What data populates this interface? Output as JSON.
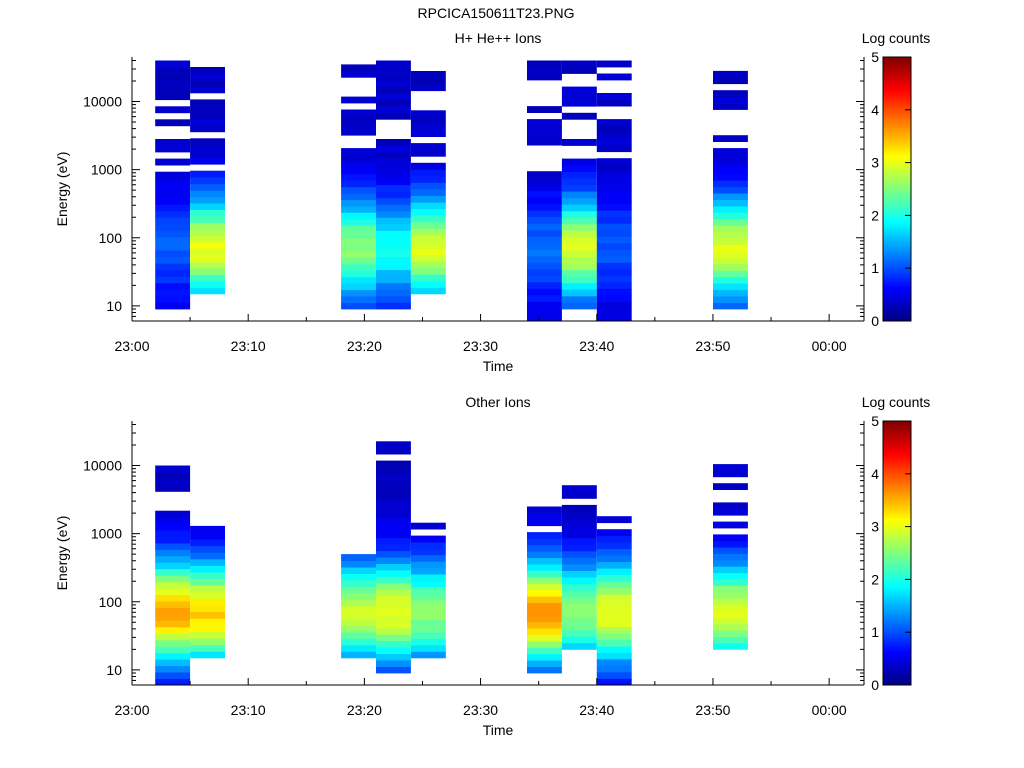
{
  "file_title": "RPCICA150611T23.PNG",
  "chart_data": [
    {
      "type": "heatmap",
      "title": "H+ He++ Ions",
      "xlabel": "Time",
      "ylabel": "Energy (eV)",
      "y_scale": "log",
      "ylim": [
        6,
        45000
      ],
      "xlim": [
        "23:00",
        "00:03"
      ],
      "x_ticks": [
        "23:00",
        "23:10",
        "23:20",
        "23:30",
        "23:40",
        "23:50",
        "00:00"
      ],
      "y_ticks": [
        "10",
        "100",
        "1000",
        "10000"
      ],
      "colorbar": {
        "label": "Log counts",
        "range": [
          0,
          5
        ],
        "ticks": [
          "0",
          "1",
          "2",
          "3",
          "4",
          "5"
        ]
      },
      "columns": [
        {
          "t0": "23:02",
          "t1": "23:05",
          "e_min": 9,
          "e_max": 40000,
          "peak_log_counts": 0.7
        },
        {
          "t0": "23:05",
          "t1": "23:08",
          "e_min": 15,
          "e_max": 40000,
          "peak_log_counts": 2.7
        },
        {
          "t0": "23:18",
          "t1": "23:21",
          "e_min": 9,
          "e_max": 35000,
          "peak_log_counts": 2.2
        },
        {
          "t0": "23:21",
          "t1": "23:24",
          "e_min": 9,
          "e_max": 40000,
          "peak_log_counts": 1.6
        },
        {
          "t0": "23:24",
          "t1": "23:27",
          "e_min": 15,
          "e_max": 35000,
          "peak_log_counts": 2.6
        },
        {
          "t0": "23:34",
          "t1": "23:37",
          "e_min": 6,
          "e_max": 40000,
          "peak_log_counts": 0.8
        },
        {
          "t0": "23:37",
          "t1": "23:40",
          "e_min": 9,
          "e_max": 40000,
          "peak_log_counts": 2.6
        },
        {
          "t0": "23:40",
          "t1": "23:43",
          "e_min": 6,
          "e_max": 40000,
          "peak_log_counts": 0.7
        },
        {
          "t0": "23:50",
          "t1": "23:53",
          "e_min": 9,
          "e_max": 35000,
          "peak_log_counts": 2.6
        }
      ]
    },
    {
      "type": "heatmap",
      "title": "Other Ions",
      "xlabel": "Time",
      "ylabel": "Energy (eV)",
      "y_scale": "log",
      "ylim": [
        6,
        45000
      ],
      "xlim": [
        "23:00",
        "00:03"
      ],
      "x_ticks": [
        "23:00",
        "23:10",
        "23:20",
        "23:30",
        "23:40",
        "23:50",
        "00:00"
      ],
      "y_ticks": [
        "10",
        "100",
        "1000",
        "10000"
      ],
      "colorbar": {
        "label": "Log counts",
        "range": [
          0,
          5
        ],
        "ticks": [
          "0",
          "1",
          "2",
          "3",
          "4",
          "5"
        ]
      },
      "columns": [
        {
          "t0": "23:02",
          "t1": "23:05",
          "e_min": 6,
          "e_max": 10000,
          "peak_log_counts": 3.2
        },
        {
          "t0": "23:05",
          "t1": "23:08",
          "e_min": 15,
          "e_max": 1300,
          "peak_log_counts": 3.0
        },
        {
          "t0": "23:18",
          "t1": "23:21",
          "e_min": 15,
          "e_max": 500,
          "peak_log_counts": 2.5
        },
        {
          "t0": "23:21",
          "t1": "23:24",
          "e_min": 9,
          "e_max": 35000,
          "peak_log_counts": 2.7
        },
        {
          "t0": "23:24",
          "t1": "23:27",
          "e_min": 15,
          "e_max": 1800,
          "peak_log_counts": 2.2
        },
        {
          "t0": "23:34",
          "t1": "23:37",
          "e_min": 9,
          "e_max": 2500,
          "peak_log_counts": 3.3
        },
        {
          "t0": "23:37",
          "t1": "23:40",
          "e_min": 20,
          "e_max": 8000,
          "peak_log_counts": 2.2
        },
        {
          "t0": "23:40",
          "t1": "23:43",
          "e_min": 6,
          "e_max": 1800,
          "peak_log_counts": 2.7
        },
        {
          "t0": "23:50",
          "t1": "23:53",
          "e_min": 20,
          "e_max": 10500,
          "peak_log_counts": 2.6
        }
      ]
    }
  ]
}
